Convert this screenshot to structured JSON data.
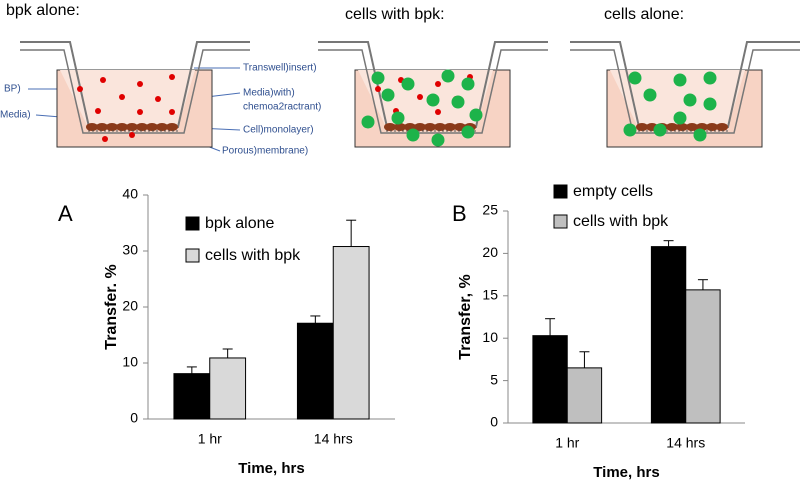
{
  "diagram": {
    "titles": [
      "bpk alone:",
      "cells with bpk:",
      "cells alone:"
    ],
    "labels": [
      "BP)",
      "Media)",
      "Transwell)insert)",
      "Media)with)",
      "chemoa2ractrant)",
      "Cell)monolayer)",
      "Porous)membrane)"
    ]
  },
  "chart_data": [
    {
      "type": "bar",
      "label": "A",
      "ylabel": "Transfer. %",
      "xlabel": "Time, hrs",
      "categories": [
        "1 hr",
        "14 hrs"
      ],
      "series": [
        {
          "name": "bpk alone",
          "color": "#000000",
          "values": [
            8.1,
            17.1
          ],
          "errors": [
            1.2,
            1.3
          ]
        },
        {
          "name": "cells with bpk",
          "color": "#d9d9d9",
          "values": [
            10.9,
            30.8
          ],
          "errors": [
            1.6,
            4.7
          ]
        }
      ],
      "ylim": [
        0,
        40
      ],
      "yticks": [
        0,
        10,
        20,
        30,
        40
      ],
      "legend": "upper left"
    },
    {
      "type": "bar",
      "label": "B",
      "ylabel": "Transfer, %",
      "xlabel": "Time, hrs",
      "categories": [
        "1 hr",
        "14 hrs"
      ],
      "series": [
        {
          "name": "empty cells",
          "color": "#000000",
          "values": [
            10.3,
            20.8
          ],
          "errors": [
            2.0,
            0.7
          ]
        },
        {
          "name": "cells with bpk",
          "color": "#bfbfbf",
          "values": [
            6.5,
            15.7
          ],
          "errors": [
            1.9,
            1.2
          ]
        }
      ],
      "ylim": [
        0,
        25
      ],
      "yticks": [
        0,
        5,
        10,
        15,
        20,
        25
      ],
      "legend": "upper left"
    }
  ]
}
